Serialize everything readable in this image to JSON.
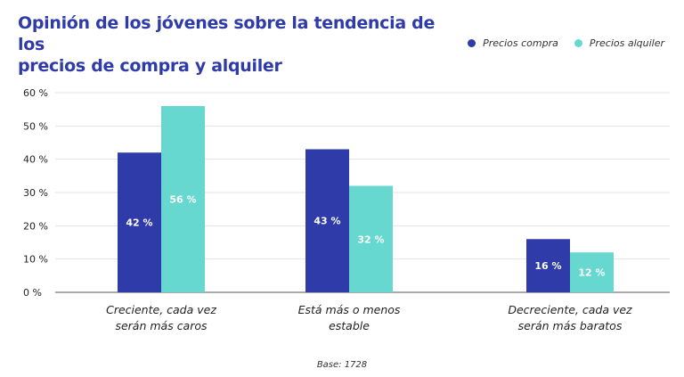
{
  "chart_data": {
    "type": "bar",
    "title_lines": [
      "Opinión de los jóvenes sobre la tendencia de los",
      "precios de compra y alquiler"
    ],
    "categories": [
      [
        "Creciente, cada vez",
        "serán más caros"
      ],
      [
        "Está más o menos",
        "estable"
      ],
      [
        "Decreciente, cada vez",
        "serán más baratos"
      ]
    ],
    "series": [
      {
        "name": "Precios compra",
        "color": "#2f3ba8",
        "values": [
          42,
          43,
          16
        ],
        "labels": [
          "42 %",
          "43 %",
          "16 %"
        ]
      },
      {
        "name": "Precios alquiler",
        "color": "#67d8d0",
        "values": [
          56,
          32,
          12
        ],
        "labels": [
          "56 %",
          "32 %",
          "12 %"
        ]
      }
    ],
    "yticks": [
      "0 %",
      "10 %",
      "20 %",
      "30 %",
      "40 %",
      "50 %",
      "60 %"
    ],
    "ylim": [
      0,
      60
    ],
    "grid": true,
    "legend_position": "top-right",
    "footnote": "Base: 1728"
  }
}
